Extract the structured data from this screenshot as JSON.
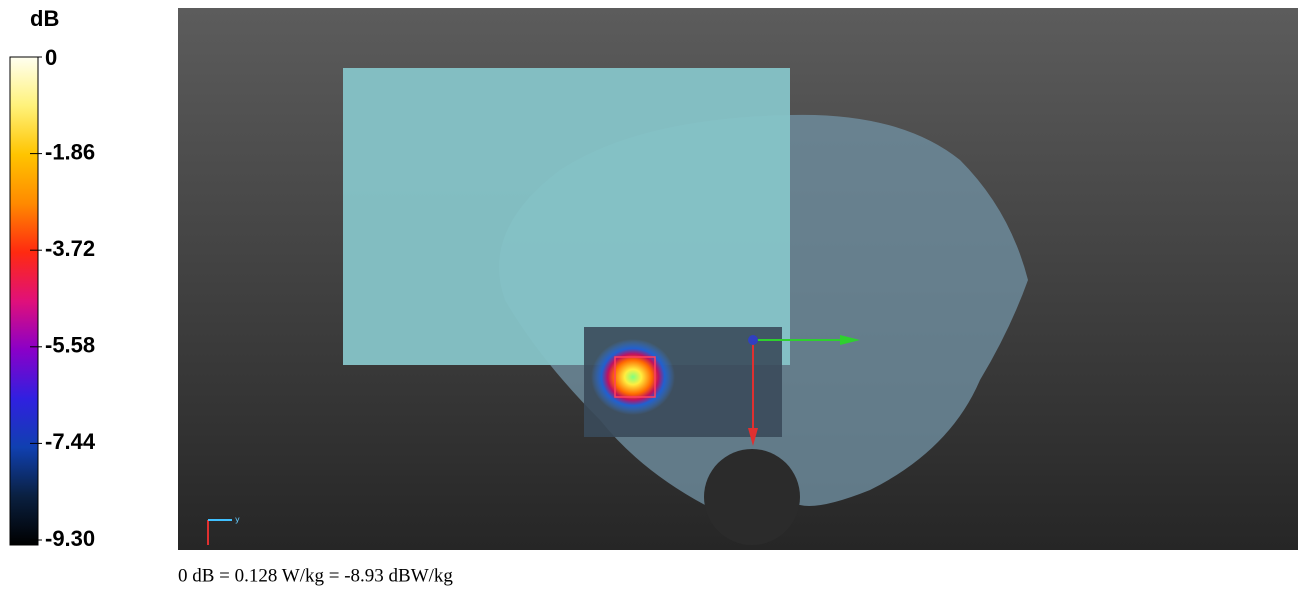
{
  "colorbar": {
    "unit": "dB",
    "ticks": [
      "0",
      "-1.86",
      "-3.72",
      "-5.58",
      "-7.44",
      "-9.30"
    ]
  },
  "axis_label": "y",
  "caption": "0 dB = 0.128 W/kg = -8.93 dBW/kg"
}
